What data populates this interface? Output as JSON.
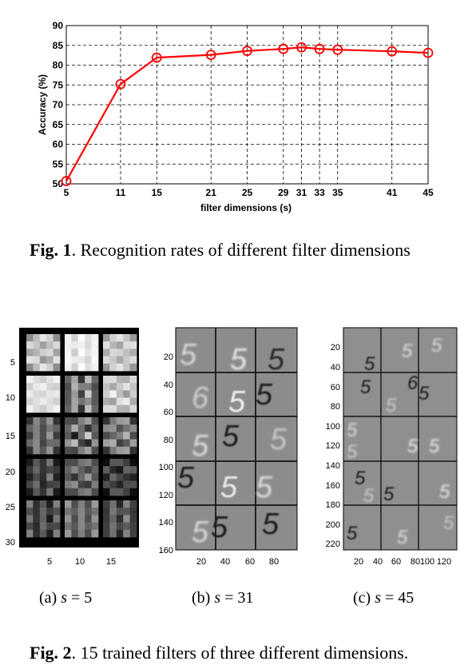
{
  "fig1": {
    "caption_label": "Fig. 1",
    "caption_text": ". Recognition rates of different filter dimensions"
  },
  "fig2": {
    "caption_label": "Fig. 2",
    "caption_text": ". 15 trained filters of three different dimensions.",
    "panels": [
      {
        "sublabel": "(a) ",
        "var": "s",
        "eq": " = 5",
        "yticks": [
          "5",
          "10",
          "15",
          "20",
          "25",
          "30"
        ],
        "xticks": [
          "5",
          "10",
          "15"
        ]
      },
      {
        "sublabel": "(b) ",
        "var": "s",
        "eq": " = 31",
        "yticks": [
          "20",
          "40",
          "60",
          "80",
          "100",
          "120",
          "140",
          "160"
        ],
        "xticks": [
          "20",
          "40",
          "60",
          "80"
        ]
      },
      {
        "sublabel": "(c) ",
        "var": "s",
        "eq": " = 45",
        "yticks": [
          "20",
          "40",
          "60",
          "80",
          "100",
          "120",
          "140",
          "160",
          "180",
          "200",
          "220"
        ],
        "xticks": [
          "20",
          "40",
          "60",
          "80",
          "100",
          "120"
        ]
      }
    ]
  },
  "chart_data": {
    "type": "line",
    "x": [
      5,
      11,
      15,
      21,
      25,
      29,
      31,
      33,
      35,
      41,
      45
    ],
    "values": [
      50.7,
      75.2,
      81.9,
      82.6,
      83.6,
      84.1,
      84.5,
      84.1,
      83.9,
      83.5,
      83.1
    ],
    "xticks": [
      "5",
      "11",
      "15",
      "21",
      "25",
      "29",
      "31",
      "33",
      "35",
      "41",
      "45"
    ],
    "yticks": [
      "50",
      "55",
      "60",
      "65",
      "70",
      "75",
      "80",
      "85",
      "90"
    ],
    "xlabel": "filter dimensions (s)",
    "ylabel": "Accuracy (%)",
    "ylim": [
      50,
      90
    ],
    "xlim": [
      5,
      45
    ],
    "grid": true,
    "line_color": "#ff0000",
    "marker": "circle-open"
  }
}
